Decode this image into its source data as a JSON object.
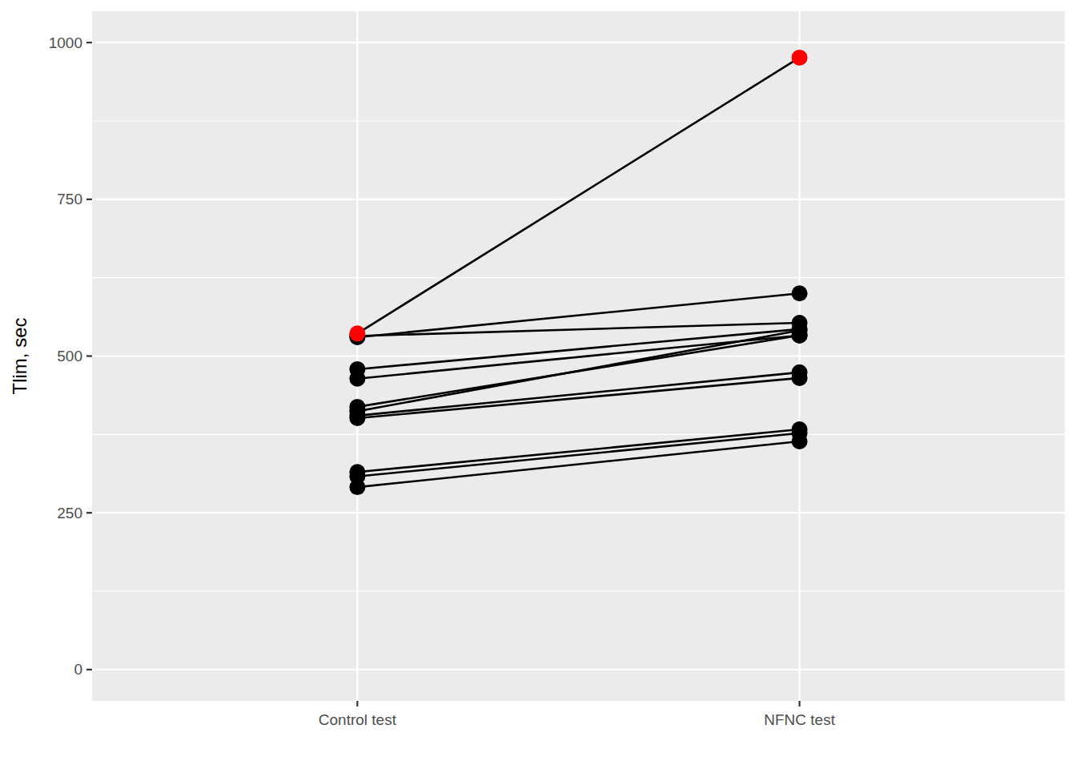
{
  "chart_data": {
    "type": "line",
    "y_label": "Tlim, sec",
    "categories": [
      "Control test",
      "NFNC test"
    ],
    "series": [
      {
        "color": "#000000",
        "values": [
          530,
          600
        ]
      },
      {
        "color": "#000000",
        "values": [
          532,
          553
        ]
      },
      {
        "color": "#000000",
        "values": [
          479,
          543
        ]
      },
      {
        "color": "#000000",
        "values": [
          464,
          533
        ]
      },
      {
        "color": "#000000",
        "values": [
          419,
          533
        ]
      },
      {
        "color": "#000000",
        "values": [
          412,
          541
        ]
      },
      {
        "color": "#000000",
        "values": [
          405,
          474
        ]
      },
      {
        "color": "#000000",
        "values": [
          401,
          465
        ]
      },
      {
        "color": "#000000",
        "values": [
          315,
          383
        ]
      },
      {
        "color": "#000000",
        "values": [
          308,
          377
        ]
      },
      {
        "color": "#000000",
        "values": [
          291,
          364
        ]
      },
      {
        "color": "#ff0000",
        "values": [
          536,
          976
        ]
      }
    ],
    "marker": "circle",
    "line_style": "solid",
    "ylim": [
      -50,
      1050
    ],
    "yticks": [
      0,
      250,
      500,
      750,
      1000
    ],
    "grid": true
  }
}
